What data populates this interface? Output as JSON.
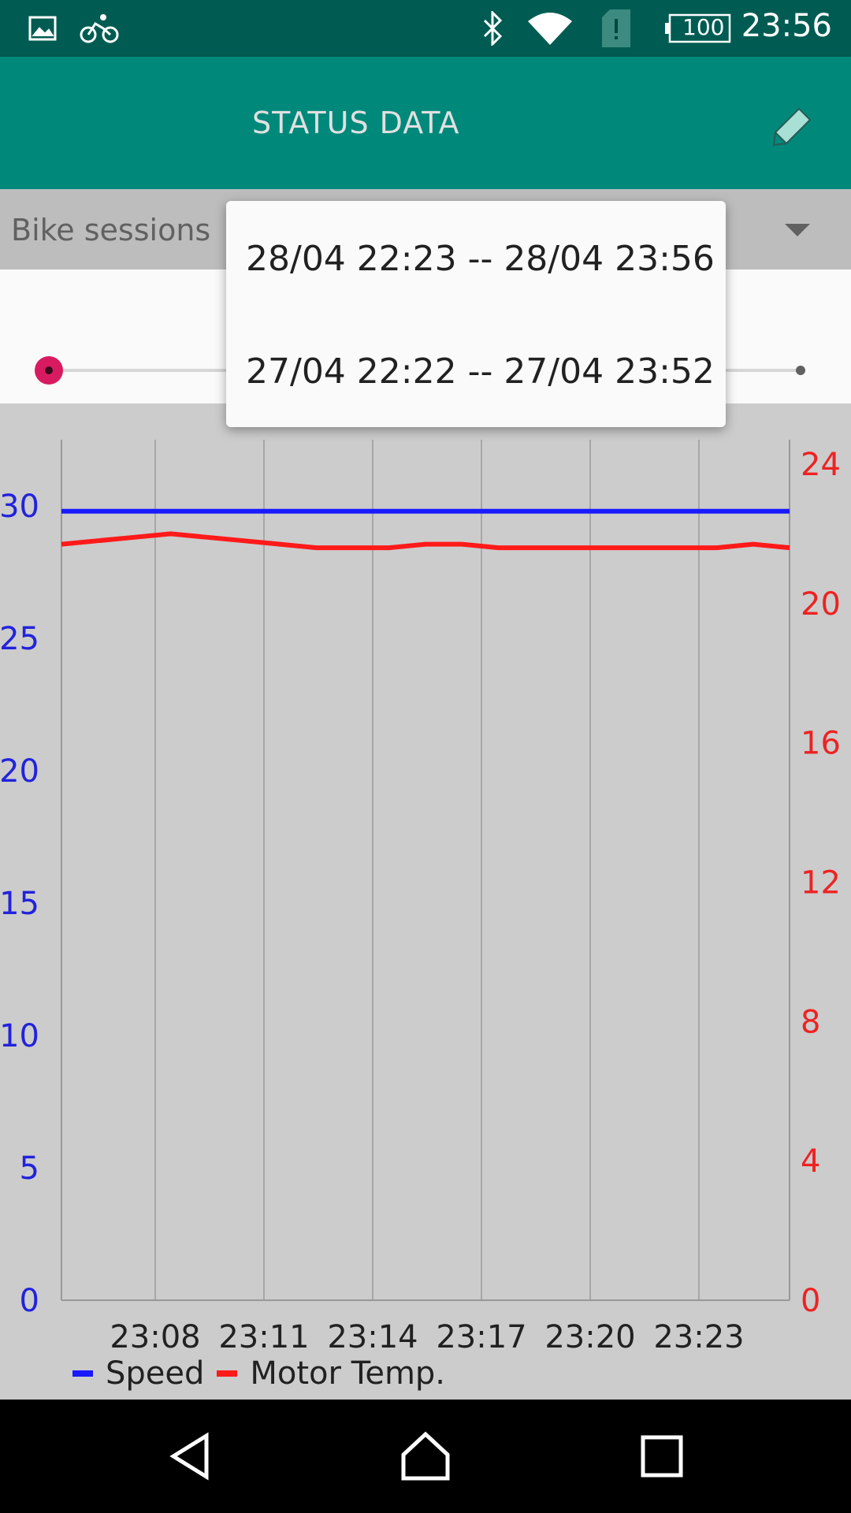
{
  "status_bar": {
    "time": "23:56",
    "battery": "100",
    "icons": [
      "image-icon",
      "bike-icon",
      "bluetooth-icon",
      "wifi-icon",
      "sim-alert-icon",
      "battery-icon"
    ]
  },
  "app_bar": {
    "title": "STATUS DATA",
    "edit_icon": "pencil-icon"
  },
  "spinner": {
    "label": "Bike sessions"
  },
  "slider": {
    "value": 0
  },
  "dropdown": {
    "items": [
      "28/04 22:23 -- 28/04 23:56",
      "27/04 22:22 -- 27/04 23:52"
    ]
  },
  "chart_data": {
    "type": "line",
    "x_ticks": [
      "23:08",
      "23:11",
      "23:14",
      "23:17",
      "23:20",
      "23:23"
    ],
    "left_axis": {
      "ticks": [
        "0",
        "5",
        "10",
        "15",
        "20",
        "25",
        "30"
      ],
      "ylim": [
        0,
        32.5
      ],
      "color": "#2222dd"
    },
    "right_axis": {
      "ticks": [
        "0",
        "4",
        "8",
        "12",
        "16",
        "20",
        "24"
      ],
      "ylim": [
        0,
        24.7
      ],
      "color": "#ee2222"
    },
    "series": [
      {
        "name": "Speed",
        "axis": "left",
        "color": "#1a1aff",
        "values": [
          29.8,
          29.8,
          29.8,
          29.8,
          29.8,
          29.8,
          29.8,
          29.8,
          29.8,
          29.8,
          29.8,
          29.8,
          29.8,
          29.8,
          29.8,
          29.8,
          29.8,
          29.8,
          29.8,
          29.8,
          29.8
        ]
      },
      {
        "name": "Motor Temp.",
        "axis": "right",
        "color": "#ff1a1a",
        "values": [
          21.7,
          21.8,
          21.9,
          22.0,
          21.9,
          21.8,
          21.7,
          21.6,
          21.6,
          21.6,
          21.7,
          21.7,
          21.6,
          21.6,
          21.6,
          21.6,
          21.6,
          21.6,
          21.6,
          21.7,
          21.6
        ]
      }
    ]
  },
  "legend": {
    "items": [
      {
        "label": "Speed",
        "color": "#1a1aff"
      },
      {
        "label": "Motor Temp.",
        "color": "#ff1a1a"
      }
    ]
  },
  "nav_bar": {
    "icons": [
      "back-icon",
      "home-icon",
      "recents-icon"
    ]
  }
}
